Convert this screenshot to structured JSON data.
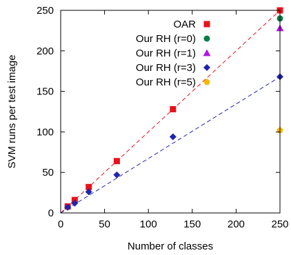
{
  "chart_data": {
    "type": "scatter",
    "xlabel": "Number of classes",
    "ylabel": "SVM runs per test image",
    "xlim": [
      0,
      250
    ],
    "ylim": [
      0,
      250
    ],
    "x_ticks": [
      0,
      50,
      100,
      150,
      200,
      250
    ],
    "y_ticks": [
      0,
      50,
      100,
      150,
      200,
      250
    ],
    "grid": false,
    "legend_position": "top-left",
    "series": [
      {
        "name": "OAR",
        "marker": "square",
        "color": "#e8121a",
        "points": [
          [
            8,
            8
          ],
          [
            16,
            16
          ],
          [
            32,
            32
          ],
          [
            64,
            64
          ],
          [
            128,
            128
          ],
          [
            250,
            250
          ]
        ]
      },
      {
        "name": "Our RH (r=0)",
        "marker": "circle",
        "color": "#0b7b4a",
        "points": [
          [
            250,
            240
          ]
        ]
      },
      {
        "name": "Our RH (r=1)",
        "marker": "triangle",
        "color": "#b01ae0",
        "points": [
          [
            250,
            228
          ]
        ]
      },
      {
        "name": "Our RH (r=3)",
        "marker": "diamond",
        "color": "#1f24a8",
        "points": [
          [
            8,
            7
          ],
          [
            16,
            12
          ],
          [
            32,
            26
          ],
          [
            64,
            47
          ],
          [
            128,
            94
          ],
          [
            250,
            168
          ]
        ]
      },
      {
        "name": "Our RH (r=5)",
        "marker": "pentagon",
        "color": "#f5b800",
        "points": [
          [
            250,
            102
          ]
        ]
      }
    ],
    "trend_lines": [
      {
        "series": "OAR",
        "color": "#e8121a",
        "from": [
          0,
          0
        ],
        "to": [
          250,
          250
        ]
      },
      {
        "series": "Our RH (r=3)",
        "color": "#1f24a8",
        "from": [
          0,
          0
        ],
        "to": [
          250,
          168
        ]
      }
    ]
  }
}
